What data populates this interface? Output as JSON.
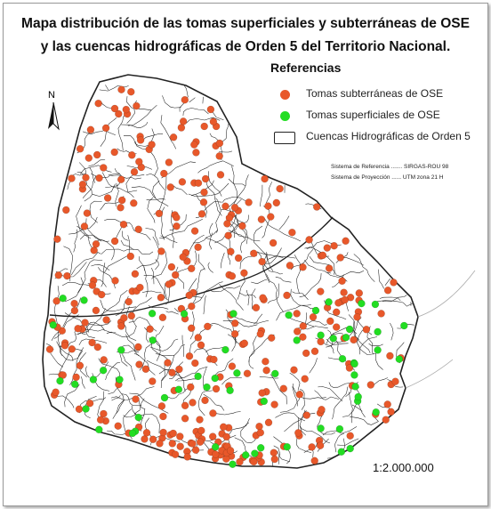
{
  "title": {
    "line1": "Mapa distribución de las tomas superficiales y subterráneas de OSE",
    "line2": "y  las cuencas hidrográficas de Orden 5 del Territorio Nacional."
  },
  "legend": {
    "heading": "Referencias",
    "items": [
      {
        "label": "Tomas subterráneas de OSE",
        "color": "#e8582a",
        "symbol": "dot"
      },
      {
        "label": "Tomas superficiales de OSE",
        "color": "#22dd22",
        "symbol": "dot"
      },
      {
        "label": "Cuencas Hidrográficas de Orden 5",
        "color": "#222222",
        "symbol": "box"
      }
    ]
  },
  "reference_system": {
    "line1": "Sistema de Referencia ....... SIRGAS-ROU 98",
    "line2": "Sistema de Proyección ...... UTM zona 21 H"
  },
  "north_arrow": {
    "label": "N"
  },
  "scale": {
    "label": "1:2.000.000"
  },
  "colors": {
    "subterranean": "#e8582a",
    "superficial": "#22dd22",
    "basin_lines": "#222222",
    "territory_fill": "#ffffff"
  }
}
